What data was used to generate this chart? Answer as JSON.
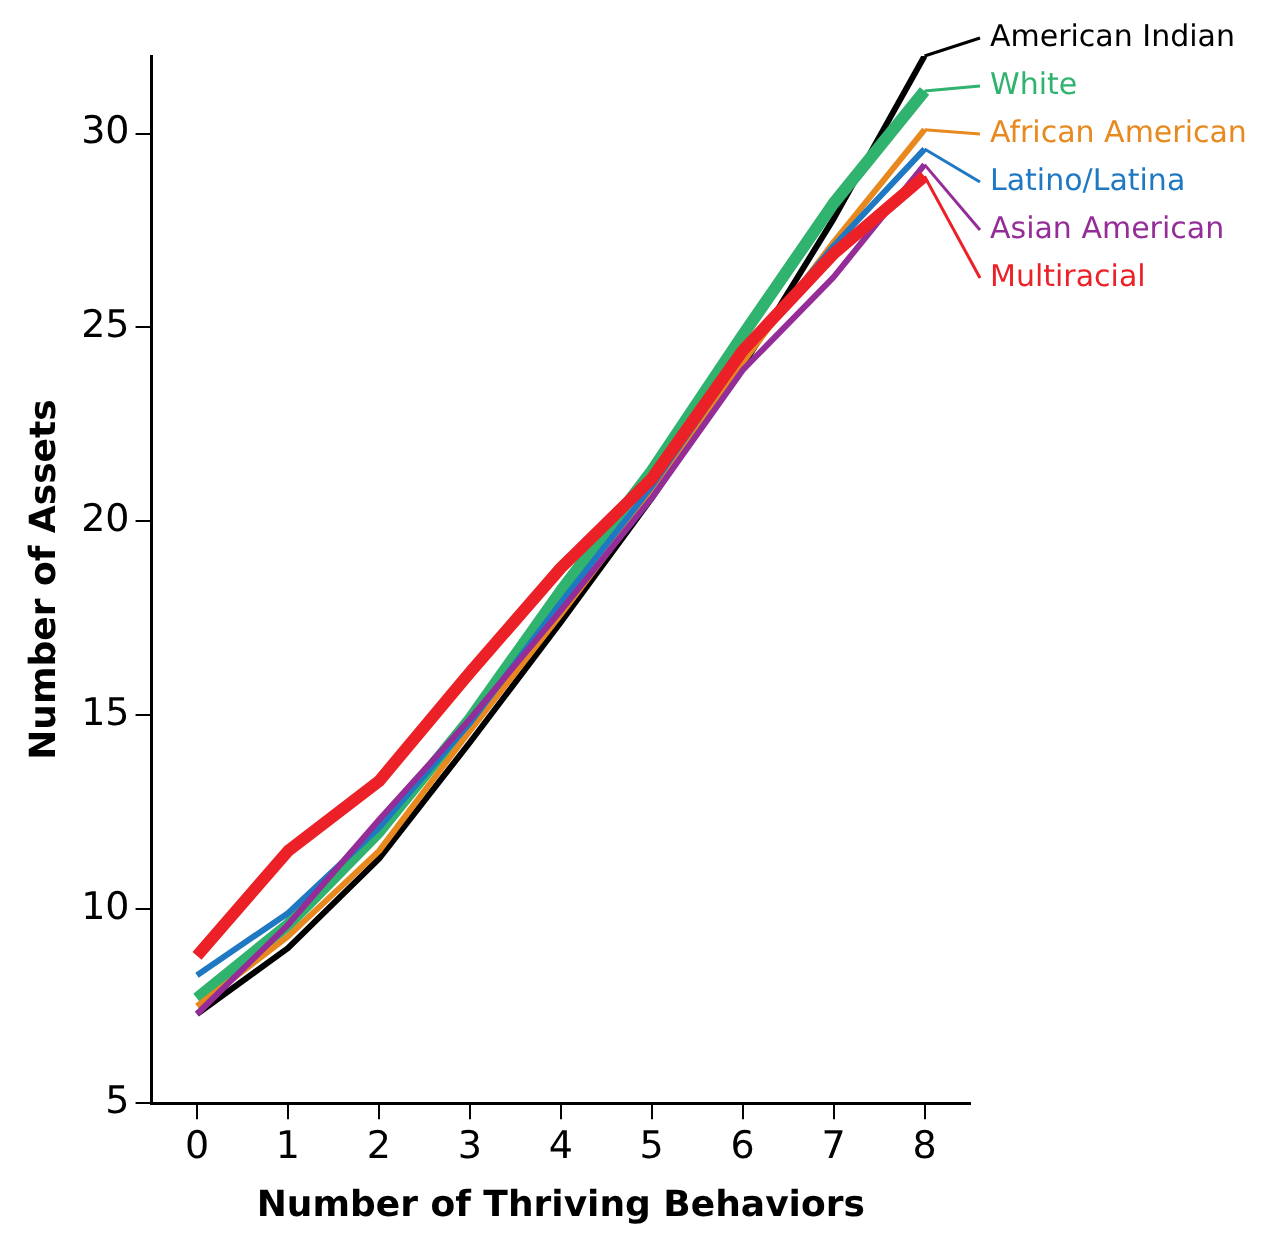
{
  "chart_data": {
    "type": "line",
    "xlabel": "Number of Thriving Behaviors",
    "ylabel": "Number of Assets",
    "x": [
      0,
      1,
      2,
      3,
      4,
      5,
      6,
      7,
      8
    ],
    "xlim": [
      -0.5,
      8.5
    ],
    "xticks": [
      0,
      1,
      2,
      3,
      4,
      5,
      6,
      7,
      8
    ],
    "ylim": [
      5,
      32
    ],
    "yticks": [
      5,
      10,
      15,
      20,
      25,
      30
    ],
    "grid": false,
    "legend": "right",
    "marker": "none",
    "line_style": "solid",
    "series": [
      {
        "name": "American Indian",
        "color": "#000000",
        "values": [
          7.3,
          9.0,
          11.3,
          14.3,
          17.4,
          20.6,
          24.0,
          27.8,
          32.0
        ]
      },
      {
        "name": "White",
        "color": "#2fb36e",
        "values": [
          7.7,
          9.6,
          12.0,
          14.9,
          18.2,
          21.3,
          24.8,
          28.2,
          31.1
        ]
      },
      {
        "name": "African American",
        "color": "#e8891f",
        "values": [
          7.5,
          9.3,
          11.5,
          14.6,
          17.6,
          20.7,
          24.1,
          27.2,
          30.1
        ]
      },
      {
        "name": "Latino/Latina",
        "color": "#1e78c2",
        "values": [
          8.3,
          9.9,
          12.1,
          14.8,
          17.9,
          20.9,
          24.3,
          27.1,
          29.6
        ]
      },
      {
        "name": "Asian American",
        "color": "#952d98",
        "values": [
          7.3,
          9.6,
          12.3,
          14.9,
          17.7,
          20.6,
          23.9,
          26.3,
          29.2
        ]
      },
      {
        "name": "Multiracial",
        "color": "#ec2027",
        "values": [
          8.8,
          11.5,
          13.3,
          16.1,
          18.8,
          21.1,
          24.4,
          26.9,
          28.9
        ]
      }
    ]
  }
}
